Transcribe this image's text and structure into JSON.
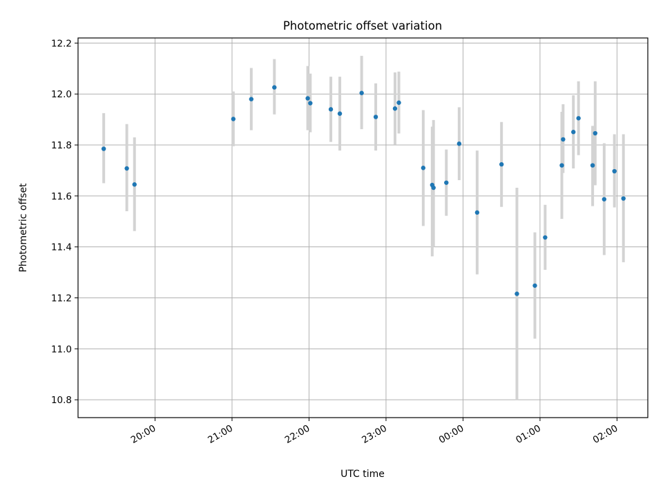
{
  "chart_data": {
    "type": "scatter",
    "title": "Photometric offset variation",
    "xlabel": "UTC time",
    "ylabel": "Photometric offset",
    "x_axis_type": "time",
    "xlim": [
      "19:00",
      "02:24"
    ],
    "ylim": [
      10.73,
      12.22
    ],
    "x_ticks": [
      "20:00",
      "21:00",
      "22:00",
      "23:00",
      "00:00",
      "01:00",
      "02:00"
    ],
    "y_ticks": [
      "10.8",
      "11.0",
      "11.2",
      "11.4",
      "11.6",
      "11.8",
      "12.0",
      "12.2"
    ],
    "grid": true,
    "point_color": "#1f77b4",
    "errorbar_color": "#d3d3d3",
    "series": [
      {
        "points": [
          {
            "t": "19:20",
            "y": 11.785,
            "lo": 11.65,
            "hi": 11.925
          },
          {
            "t": "19:38",
            "y": 11.708,
            "lo": 11.54,
            "hi": 11.882
          },
          {
            "t": "19:44",
            "y": 11.645,
            "lo": 11.462,
            "hi": 11.83
          },
          {
            "t": "21:01",
            "y": 11.902,
            "lo": 11.795,
            "hi": 12.01
          },
          {
            "t": "21:15",
            "y": 11.98,
            "lo": 11.858,
            "hi": 12.102
          },
          {
            "t": "21:33",
            "y": 12.026,
            "lo": 11.92,
            "hi": 12.137
          },
          {
            "t": "21:59",
            "y": 11.983,
            "lo": 11.858,
            "hi": 12.11
          },
          {
            "t": "22:01",
            "y": 11.964,
            "lo": 11.85,
            "hi": 12.08
          },
          {
            "t": "22:17",
            "y": 11.94,
            "lo": 11.812,
            "hi": 12.068
          },
          {
            "t": "22:24",
            "y": 11.923,
            "lo": 11.778,
            "hi": 12.068
          },
          {
            "t": "22:41",
            "y": 12.004,
            "lo": 11.862,
            "hi": 12.15
          },
          {
            "t": "22:52",
            "y": 11.91,
            "lo": 11.778,
            "hi": 12.042
          },
          {
            "t": "23:07",
            "y": 11.943,
            "lo": 11.802,
            "hi": 12.085
          },
          {
            "t": "23:10",
            "y": 11.966,
            "lo": 11.845,
            "hi": 12.088
          },
          {
            "t": "23:29",
            "y": 11.71,
            "lo": 11.482,
            "hi": 11.937
          },
          {
            "t": "23:36",
            "y": 11.643,
            "lo": 11.363,
            "hi": 11.872
          },
          {
            "t": "23:37",
            "y": 11.632,
            "lo": 11.4,
            "hi": 11.898
          },
          {
            "t": "23:47",
            "y": 11.652,
            "lo": 11.522,
            "hi": 11.782
          },
          {
            "t": "23:57",
            "y": 11.805,
            "lo": 11.662,
            "hi": 11.948
          },
          {
            "t": "00:11",
            "y": 11.535,
            "lo": 11.292,
            "hi": 11.778
          },
          {
            "t": "00:30",
            "y": 11.724,
            "lo": 11.557,
            "hi": 11.89
          },
          {
            "t": "00:42",
            "y": 11.216,
            "lo": 10.8,
            "hi": 11.632
          },
          {
            "t": "00:56",
            "y": 11.248,
            "lo": 11.04,
            "hi": 11.457
          },
          {
            "t": "01:04",
            "y": 11.437,
            "lo": 11.31,
            "hi": 11.565
          },
          {
            "t": "01:17",
            "y": 11.72,
            "lo": 11.51,
            "hi": 11.93
          },
          {
            "t": "01:18",
            "y": 11.822,
            "lo": 11.69,
            "hi": 11.96
          },
          {
            "t": "01:26",
            "y": 11.851,
            "lo": 11.708,
            "hi": 11.995
          },
          {
            "t": "01:30",
            "y": 11.905,
            "lo": 11.76,
            "hi": 12.05
          },
          {
            "t": "01:41",
            "y": 11.72,
            "lo": 11.56,
            "hi": 11.875
          },
          {
            "t": "01:43",
            "y": 11.846,
            "lo": 11.642,
            "hi": 12.05
          },
          {
            "t": "01:50",
            "y": 11.587,
            "lo": 11.368,
            "hi": 11.807
          },
          {
            "t": "01:58",
            "y": 11.697,
            "lo": 11.555,
            "hi": 11.842
          },
          {
            "t": "02:05",
            "y": 11.59,
            "lo": 11.34,
            "hi": 11.842
          }
        ]
      }
    ]
  }
}
